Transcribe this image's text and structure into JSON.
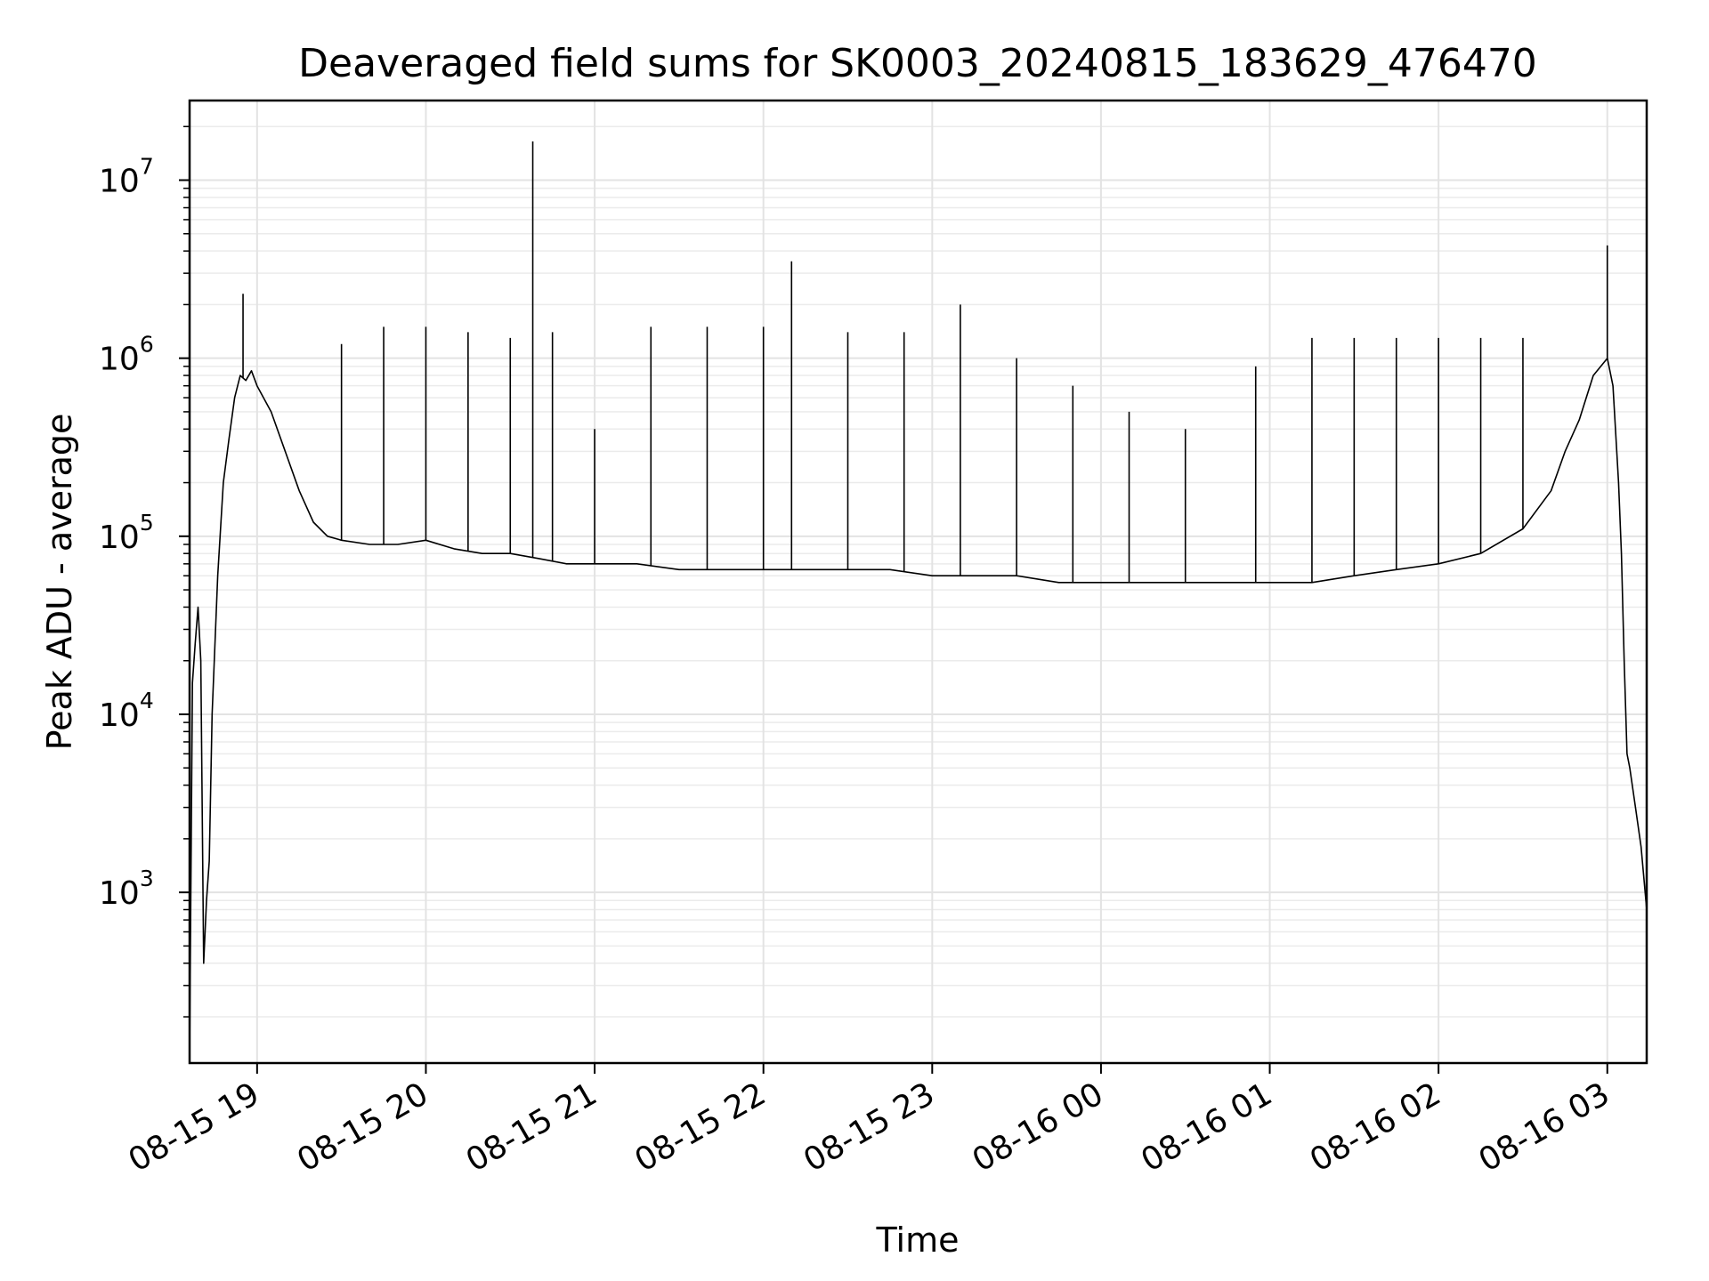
{
  "chart_data": {
    "type": "line",
    "title": "Deaveraged field sums for SK0003_20240815_183629_476470",
    "xlabel": "Time",
    "ylabel": "Peak ADU - average",
    "xlim": [
      "2024-08-15 18:36",
      "2024-08-16 03:14"
    ],
    "ylim": [
      110,
      28000000
    ],
    "yscale": "log",
    "grid": true,
    "line_color": "#000000",
    "x_ticks": [
      {
        "label": "08-15 19",
        "time": "2024-08-15 19:00"
      },
      {
        "label": "08-15 20",
        "time": "2024-08-15 20:00"
      },
      {
        "label": "08-15 21",
        "time": "2024-08-15 21:00"
      },
      {
        "label": "08-15 22",
        "time": "2024-08-15 22:00"
      },
      {
        "label": "08-15 23",
        "time": "2024-08-15 23:00"
      },
      {
        "label": "08-16 00",
        "time": "2024-08-16 00:00"
      },
      {
        "label": "08-16 01",
        "time": "2024-08-16 01:00"
      },
      {
        "label": "08-16 02",
        "time": "2024-08-16 02:00"
      },
      {
        "label": "08-16 03",
        "time": "2024-08-16 03:00"
      }
    ],
    "y_ticks": [
      {
        "value": 1000,
        "base": "10",
        "exp": "3"
      },
      {
        "value": 10000,
        "base": "10",
        "exp": "4"
      },
      {
        "value": 100000,
        "base": "10",
        "exp": "5"
      },
      {
        "value": 1000000,
        "base": "10",
        "exp": "6"
      },
      {
        "value": 10000000,
        "base": "10",
        "exp": "7"
      }
    ],
    "series": [
      {
        "x": [
          "2024-08-15 18:36",
          "2024-08-15 18:37",
          "2024-08-15 18:38",
          "2024-08-15 18:39",
          "2024-08-15 18:40",
          "2024-08-15 18:41",
          "2024-08-15 18:42",
          "2024-08-15 18:43",
          "2024-08-15 18:44",
          "2024-08-15 18:46",
          "2024-08-15 18:48",
          "2024-08-15 18:50",
          "2024-08-15 18:52",
          "2024-08-15 18:54",
          "2024-08-15 18:56",
          "2024-08-15 18:58",
          "2024-08-15 19:00",
          "2024-08-15 19:05",
          "2024-08-15 19:10",
          "2024-08-15 19:15",
          "2024-08-15 19:20",
          "2024-08-15 19:25",
          "2024-08-15 19:30",
          "2024-08-15 19:40",
          "2024-08-15 19:50",
          "2024-08-15 20:00",
          "2024-08-15 20:10",
          "2024-08-15 20:20",
          "2024-08-15 20:30",
          "2024-08-15 20:40",
          "2024-08-15 20:50",
          "2024-08-15 21:00",
          "2024-08-15 21:15",
          "2024-08-15 21:30",
          "2024-08-15 21:45",
          "2024-08-15 22:00",
          "2024-08-15 22:15",
          "2024-08-15 22:30",
          "2024-08-15 22:45",
          "2024-08-15 23:00",
          "2024-08-15 23:15",
          "2024-08-15 23:30",
          "2024-08-15 23:45",
          "2024-08-16 00:00",
          "2024-08-16 00:15",
          "2024-08-16 00:30",
          "2024-08-16 00:45",
          "2024-08-16 01:00",
          "2024-08-16 01:15",
          "2024-08-16 01:30",
          "2024-08-16 01:45",
          "2024-08-16 02:00",
          "2024-08-16 02:15",
          "2024-08-16 02:30",
          "2024-08-16 02:40",
          "2024-08-16 02:45",
          "2024-08-16 02:50",
          "2024-08-16 02:55",
          "2024-08-16 03:00",
          "2024-08-16 03:02",
          "2024-08-16 03:04",
          "2024-08-16 03:05",
          "2024-08-16 03:06",
          "2024-08-16 03:07",
          "2024-08-16 03:08",
          "2024-08-16 03:10",
          "2024-08-16 03:12",
          "2024-08-16 03:14"
        ],
        "y": [
          120,
          15000,
          25000,
          40000,
          20000,
          400,
          900,
          1500,
          10000,
          60000,
          200000,
          350000,
          600000,
          800000,
          750000,
          850000,
          700000,
          500000,
          300000,
          180000,
          120000,
          100000,
          95000,
          90000,
          90000,
          95000,
          85000,
          80000,
          80000,
          75000,
          70000,
          70000,
          70000,
          65000,
          65000,
          65000,
          65000,
          65000,
          65000,
          60000,
          60000,
          60000,
          55000,
          55000,
          55000,
          55000,
          55000,
          55000,
          55000,
          60000,
          65000,
          70000,
          80000,
          110000,
          180000,
          300000,
          450000,
          800000,
          1000000,
          700000,
          200000,
          80000,
          20000,
          6000,
          5000,
          3000,
          1800,
          800
        ],
        "spikes": [
          {
            "x": "2024-08-15 18:55",
            "y": 2300000
          },
          {
            "x": "2024-08-15 19:30",
            "y": 1200000
          },
          {
            "x": "2024-08-15 19:45",
            "y": 1500000
          },
          {
            "x": "2024-08-15 20:00",
            "y": 1500000
          },
          {
            "x": "2024-08-15 20:15",
            "y": 1400000
          },
          {
            "x": "2024-08-15 20:30",
            "y": 1300000
          },
          {
            "x": "2024-08-15 20:38",
            "y": 16500000
          },
          {
            "x": "2024-08-15 20:45",
            "y": 1400000
          },
          {
            "x": "2024-08-15 21:00",
            "y": 400000
          },
          {
            "x": "2024-08-15 21:20",
            "y": 1500000
          },
          {
            "x": "2024-08-15 21:40",
            "y": 1500000
          },
          {
            "x": "2024-08-15 22:00",
            "y": 1500000
          },
          {
            "x": "2024-08-15 22:10",
            "y": 3500000
          },
          {
            "x": "2024-08-15 22:30",
            "y": 1400000
          },
          {
            "x": "2024-08-15 22:50",
            "y": 1400000
          },
          {
            "x": "2024-08-15 23:10",
            "y": 2000000
          },
          {
            "x": "2024-08-15 23:30",
            "y": 1000000
          },
          {
            "x": "2024-08-15 23:50",
            "y": 700000
          },
          {
            "x": "2024-08-16 00:10",
            "y": 500000
          },
          {
            "x": "2024-08-16 00:30",
            "y": 400000
          },
          {
            "x": "2024-08-16 00:55",
            "y": 900000
          },
          {
            "x": "2024-08-16 01:15",
            "y": 1300000
          },
          {
            "x": "2024-08-16 01:30",
            "y": 1300000
          },
          {
            "x": "2024-08-16 01:45",
            "y": 1300000
          },
          {
            "x": "2024-08-16 02:00",
            "y": 1300000
          },
          {
            "x": "2024-08-16 02:15",
            "y": 1300000
          },
          {
            "x": "2024-08-16 02:30",
            "y": 1300000
          },
          {
            "x": "2024-08-16 03:00",
            "y": 4300000
          }
        ]
      }
    ]
  }
}
